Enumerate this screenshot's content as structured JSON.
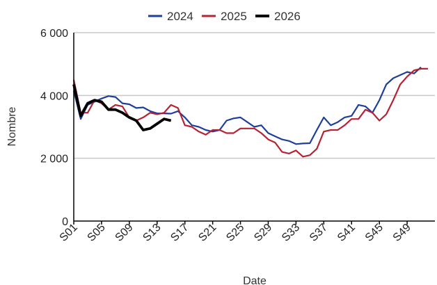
{
  "chart_data": {
    "type": "line",
    "title": "",
    "xlabel": "Date",
    "ylabel": "Nombre",
    "ylim": [
      0,
      6000
    ],
    "y_ticks": [
      0,
      2000,
      4000,
      6000
    ],
    "y_tick_labels": [
      "0",
      "2 000",
      "4 000",
      "6 000"
    ],
    "x_tick_labels": [
      "S01",
      "S05",
      "S09",
      "S13",
      "S17",
      "S21",
      "S25",
      "S29",
      "S33",
      "S37",
      "S41",
      "S45",
      "S49"
    ],
    "x_tick_weeks": [
      1,
      5,
      9,
      13,
      17,
      21,
      25,
      29,
      33,
      37,
      41,
      45,
      49
    ],
    "x_range_weeks": [
      1,
      53
    ],
    "grid": "horizontal",
    "legend_position": "top",
    "series": [
      {
        "name": "2024",
        "color": "#1f3e9c",
        "line_width": "normal",
        "values": [
          4150,
          3250,
          3700,
          3800,
          3900,
          3980,
          3950,
          3750,
          3720,
          3600,
          3620,
          3500,
          3430,
          3430,
          3420,
          3500,
          3300,
          3050,
          3000,
          2900,
          2850,
          2900,
          3200,
          3270,
          3300,
          3150,
          3000,
          3050,
          2800,
          2700,
          2600,
          2550,
          2450,
          2470,
          2480,
          2900,
          3300,
          3050,
          3150,
          3300,
          3350,
          3700,
          3650,
          3450,
          3850,
          4350,
          4550,
          4650,
          4750,
          4700,
          4900
        ]
      },
      {
        "name": "2025",
        "color": "#b52233",
        "line_width": "normal",
        "values": [
          4500,
          3450,
          3450,
          3850,
          3750,
          3550,
          3700,
          3650,
          3300,
          3200,
          3300,
          3450,
          3400,
          3450,
          3700,
          3600,
          3050,
          3000,
          2850,
          2750,
          2900,
          2900,
          2800,
          2800,
          2950,
          2950,
          2950,
          2800,
          2600,
          2500,
          2200,
          2150,
          2250,
          2050,
          2100,
          2300,
          2850,
          2900,
          2900,
          3050,
          3250,
          3250,
          3550,
          3450,
          3200,
          3400,
          3850,
          4350,
          4600,
          4800,
          4850,
          4850
        ]
      },
      {
        "name": "2026",
        "color": "#000000",
        "line_width": "thick",
        "values": [
          4350,
          3350,
          3750,
          3850,
          3800,
          3550,
          3550,
          3450,
          3300,
          3200,
          2900,
          2950,
          3100,
          3250,
          3200
        ]
      }
    ]
  }
}
